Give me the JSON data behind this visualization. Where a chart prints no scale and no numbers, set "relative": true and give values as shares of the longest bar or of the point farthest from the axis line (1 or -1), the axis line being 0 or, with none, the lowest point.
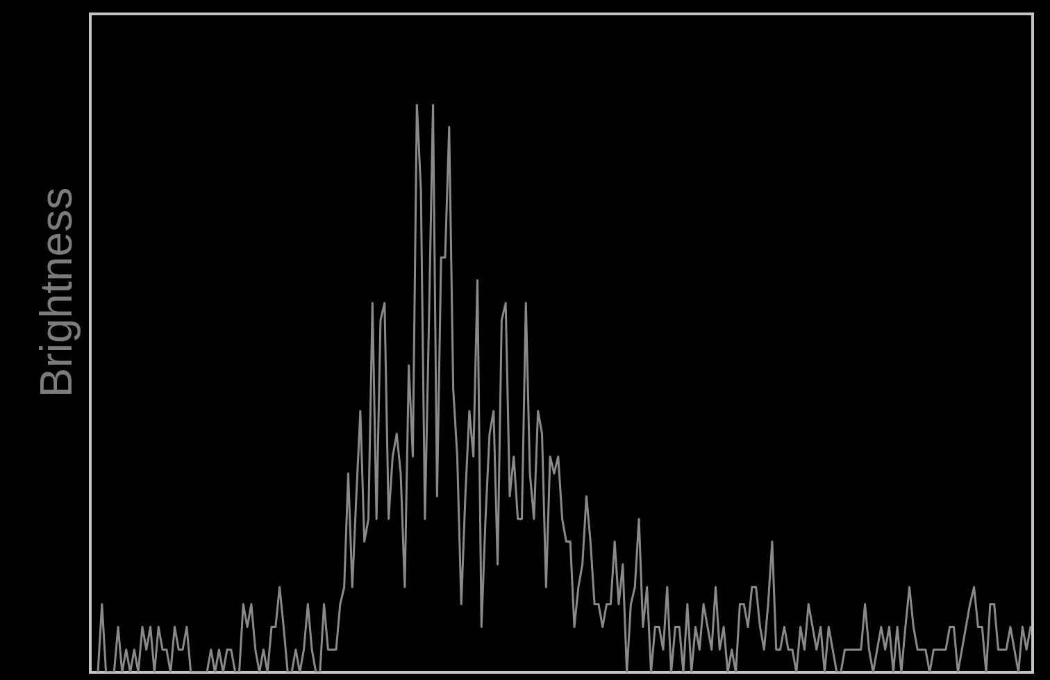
{
  "chart_data": {
    "type": "line",
    "ylabel": "Brightness",
    "relative": true,
    "color": "#8a8a8a",
    "categories": [
      null,
      null,
      null,
      null,
      null,
      null,
      null,
      null,
      null,
      null,
      null,
      null,
      null,
      null,
      null,
      null,
      null,
      null,
      null,
      null,
      null,
      null,
      null,
      null,
      null,
      null,
      null,
      null,
      null,
      null,
      null,
      null,
      null,
      null,
      null,
      null,
      null,
      null,
      null,
      null,
      null,
      null,
      null,
      null,
      null,
      null,
      null,
      null,
      null,
      null,
      null,
      null,
      null,
      null,
      null,
      null,
      null,
      null,
      null,
      null,
      null,
      null,
      null,
      null,
      null,
      null,
      null,
      null,
      null,
      null,
      null,
      null,
      null,
      null,
      null,
      null,
      null,
      null,
      null,
      null,
      null,
      null,
      null,
      null,
      null,
      null,
      null,
      null,
      null,
      null,
      null,
      null,
      null,
      null,
      null,
      null,
      null,
      null,
      null,
      null,
      null,
      null,
      null,
      null,
      null,
      null,
      null,
      null,
      null,
      null,
      null,
      null,
      null,
      null,
      null,
      null,
      null,
      null,
      null,
      null,
      null,
      null,
      null,
      null,
      null,
      null,
      null,
      null,
      null,
      null,
      null,
      null,
      null,
      null,
      null,
      null,
      null,
      null,
      null,
      null,
      null,
      null,
      null,
      null,
      null,
      null,
      null,
      null,
      null,
      null,
      null,
      null,
      null,
      null,
      null,
      null,
      null,
      null,
      null,
      null,
      null,
      null,
      null,
      null,
      null,
      null,
      null,
      null,
      null,
      null,
      null,
      null,
      null,
      null,
      null,
      null,
      null,
      null,
      null,
      null,
      null,
      null,
      null,
      null,
      null,
      null,
      null,
      null,
      null,
      null,
      null,
      null,
      null,
      null,
      null,
      null,
      null,
      null,
      null,
      null,
      null,
      null,
      null,
      null,
      null,
      null,
      null,
      null,
      null,
      null,
      null,
      null,
      null,
      null,
      null,
      null,
      null,
      null,
      null,
      null,
      null,
      null,
      null,
      null,
      null,
      null,
      null,
      null,
      null,
      null,
      null,
      null
    ],
    "values": [
      0,
      0.12,
      0,
      0,
      0,
      0.08,
      0,
      0.04,
      0,
      0.04,
      0,
      0.08,
      0.04,
      0.08,
      0,
      0.08,
      0.04,
      0.04,
      0,
      0.08,
      0.04,
      0.04,
      0.08,
      0,
      0,
      0,
      0,
      0,
      0.04,
      0,
      0.04,
      0,
      0.04,
      0.04,
      0,
      0,
      0.12,
      0.08,
      0.12,
      0.04,
      0,
      0.04,
      0,
      0.08,
      0.08,
      0.15,
      0.08,
      0,
      0,
      0.04,
      0,
      0.04,
      0.12,
      0.04,
      0,
      0,
      0.12,
      0.04,
      0.04,
      0.04,
      0.12,
      0.15,
      0.35,
      0.15,
      0.31,
      0.46,
      0.23,
      0.27,
      0.65,
      0.27,
      0.62,
      0.65,
      0.27,
      0.38,
      0.42,
      0.35,
      0.15,
      0.54,
      0.38,
      1,
      0.85,
      0.27,
      0.62,
      1,
      0.31,
      0.73,
      0.73,
      0.96,
      0.5,
      0.38,
      0.12,
      0.31,
      0.46,
      0.38,
      0.69,
      0.08,
      0.27,
      0.42,
      0.46,
      0.19,
      0.62,
      0.65,
      0.31,
      0.38,
      0.27,
      0.27,
      0.65,
      0.35,
      0.27,
      0.46,
      0.42,
      0.15,
      0.38,
      0.35,
      0.38,
      0.27,
      0.23,
      0.23,
      0.08,
      0.15,
      0.19,
      0.31,
      0.23,
      0.12,
      0.12,
      0.08,
      0.12,
      0.12,
      0.23,
      0.12,
      0.19,
      0,
      0.12,
      0.15,
      0.27,
      0.08,
      0.15,
      0,
      0.08,
      0.08,
      0.04,
      0.15,
      0,
      0.08,
      0.08,
      0,
      0.12,
      0,
      0.08,
      0.04,
      0.12,
      0.08,
      0.04,
      0.15,
      0.04,
      0.08,
      0,
      0.04,
      0,
      0.12,
      0.12,
      0.08,
      0.15,
      0.15,
      0.08,
      0.04,
      0.12,
      0.23,
      0.04,
      0.04,
      0.08,
      0.04,
      0.04,
      0,
      0.08,
      0.04,
      0.12,
      0.08,
      0.04,
      0.08,
      0,
      0.08,
      0.04,
      0,
      0,
      0.04,
      0.04,
      0.04,
      0.04,
      0.04,
      0.12,
      0.04,
      0,
      0.04,
      0.08,
      0.04,
      0.08,
      0,
      0.08,
      0,
      0.08,
      0.15,
      0.08,
      0.04,
      0.04,
      0.04,
      0,
      0.04,
      0.04,
      0.04,
      0.04,
      0.08,
      0.08,
      0,
      0.04,
      0.08,
      0.12,
      0.15,
      0.08,
      0.08,
      0,
      0.12,
      0.12,
      0.04,
      0.04,
      0.04,
      0.08,
      0.04,
      0,
      0.08,
      0.04,
      0.08
    ]
  }
}
